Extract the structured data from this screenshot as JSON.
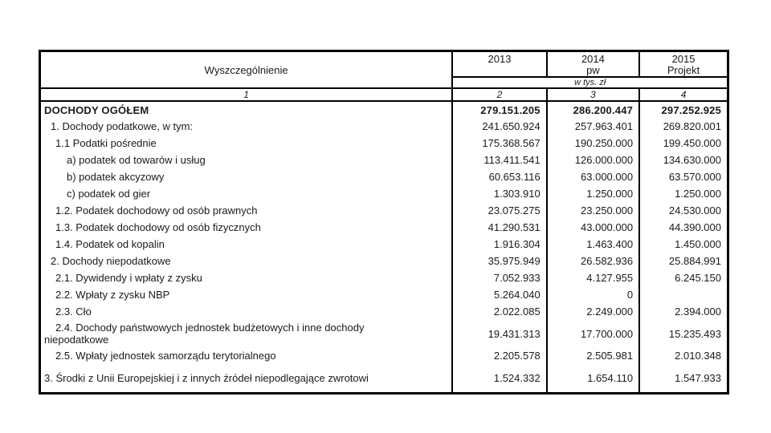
{
  "table": {
    "columns": {
      "label": {
        "title": "Wyszczególnienie",
        "number": "1"
      },
      "y2013": {
        "title": "2013",
        "subtitle": "",
        "number": "2"
      },
      "y2014": {
        "title": "2014",
        "subtitle": "pw",
        "number": "3"
      },
      "y2015": {
        "title": "2015",
        "subtitle": "Projekt",
        "number": "4"
      }
    },
    "unit_note": "w tys. zł",
    "rows": [
      {
        "label": "DOCHODY OGÓŁEM",
        "v2013": "279.151.205",
        "v2014": "286.200.447",
        "v2015": "297.252.925"
      },
      {
        "label": "1. Dochody podatkowe, w tym:",
        "v2013": "241.650.924",
        "v2014": "257.963.401",
        "v2015": "269.820.001"
      },
      {
        "label": "1.1 Podatki pośrednie",
        "v2013": "175.368.567",
        "v2014": "190.250.000",
        "v2015": "199.450.000"
      },
      {
        "label": "a) podatek od towarów i usług",
        "v2013": "113.411.541",
        "v2014": "126.000.000",
        "v2015": "134.630.000"
      },
      {
        "label": "b) podatek akcyzowy",
        "v2013": "60.653.116",
        "v2014": "63.000.000",
        "v2015": "63.570.000"
      },
      {
        "label": "c) podatek od gier",
        "v2013": "1.303.910",
        "v2014": "1.250.000",
        "v2015": "1.250.000"
      },
      {
        "label": "1.2. Podatek dochodowy od osób prawnych",
        "v2013": "23.075.275",
        "v2014": "23.250.000",
        "v2015": "24.530.000"
      },
      {
        "label": "1.3. Podatek dochodowy od osób fizycznych",
        "v2013": "41.290.531",
        "v2014": "43.000.000",
        "v2015": "44.390.000"
      },
      {
        "label": "1.4. Podatek od kopalin",
        "v2013": "1.916.304",
        "v2014": "1.463.400",
        "v2015": "1.450.000"
      },
      {
        "label": "2. Dochody niepodatkowe",
        "v2013": "35.975.949",
        "v2014": "26.582.936",
        "v2015": "25.884.991"
      },
      {
        "label": "2.1. Dywidendy i wpłaty z zysku",
        "v2013": "7.052.933",
        "v2014": "4.127.955",
        "v2015": "6.245.150"
      },
      {
        "label": "2.2. Wpłaty z zysku NBP",
        "v2013": "5.264.040",
        "v2014": "0",
        "v2015": ""
      },
      {
        "label": "2.3. Cło",
        "v2013": "2.022.085",
        "v2014": "2.249.000",
        "v2015": "2.394.000"
      },
      {
        "label": "2.4. Dochody państwowych jednostek budżetowych i inne dochody niepodatkowe",
        "v2013": "19.431.313",
        "v2014": "17.700.000",
        "v2015": "15.235.493"
      },
      {
        "label": "2.5. Wpłaty jednostek samorządu terytorialnego",
        "v2013": "2.205.578",
        "v2014": "2.505.981",
        "v2015": "2.010.348"
      },
      {
        "label": "3. Środki z Unii Europejskiej i z innych źródeł niepodlegające zwrotowi",
        "v2013": "1.524.332",
        "v2014": "1.654.110",
        "v2015": "1.547.933"
      }
    ]
  }
}
